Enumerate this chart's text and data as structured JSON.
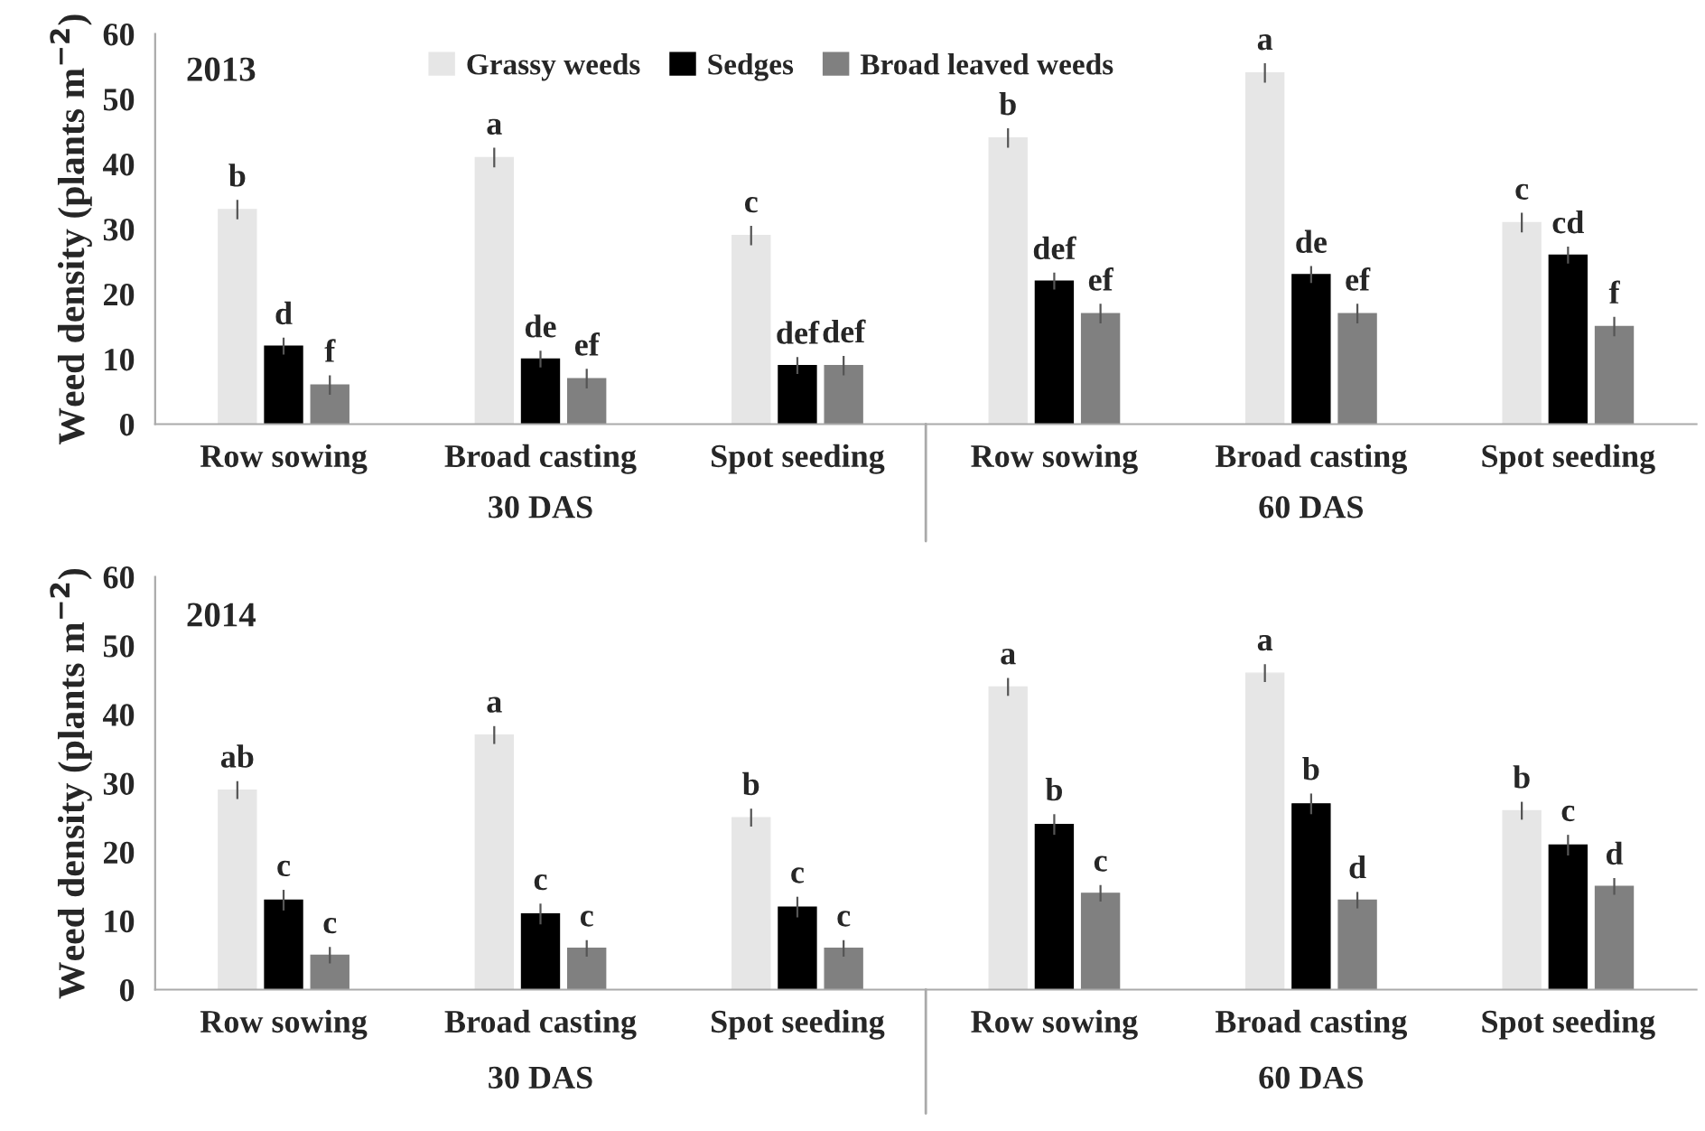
{
  "chart_data": [
    {
      "type": "bar",
      "title": "2013",
      "ylabel": "Weed density (plants m$^{−2}$)",
      "categories": [
        "Row sowing",
        "Broad casting",
        "Spot seeding",
        "Row sowing",
        "Broad casting",
        "Spot seeding"
      ],
      "series": [
        {
          "name": "Grassy weeds",
          "color": "#e6e6e6",
          "values": [
            33,
            41,
            29,
            44,
            54,
            31
          ],
          "errors": [
            1.5,
            1.5,
            1.5,
            1.5,
            1.5,
            1.5
          ],
          "value_labels": [
            "b",
            "a",
            "c",
            "b",
            "a",
            "c"
          ]
        },
        {
          "name": "Sedges",
          "color": "#000000",
          "values": [
            12,
            10,
            9,
            22,
            23,
            26
          ],
          "errors": [
            1.3,
            1.3,
            1.3,
            1.3,
            1.3,
            1.3
          ],
          "value_labels": [
            "d",
            "de",
            "def",
            "def",
            "de",
            "cd"
          ]
        },
        {
          "name": "Broad leaved weeds",
          "color": "#808080",
          "values": [
            6,
            7,
            9,
            17,
            17,
            15
          ],
          "errors": [
            1.5,
            1.5,
            1.5,
            1.5,
            1.5,
            1.5
          ],
          "value_labels": [
            "f",
            "ef",
            "def",
            "ef",
            "ef",
            "f"
          ]
        }
      ],
      "annotations": [
        "30 DAS",
        "60 DAS"
      ],
      "ylim": [
        0,
        60
      ],
      "yticks": [
        0,
        10,
        20,
        30,
        40,
        50,
        60
      ],
      "grid": false,
      "legend": "top"
    },
    {
      "type": "bar",
      "title": "2014",
      "ylabel": "Weed density (plants m$^{−2}$)",
      "categories": [
        "Row sowing",
        "Broad casting",
        "Spot seeding",
        "Row sowing",
        "Broad casting",
        "Spot seeding"
      ],
      "series": [
        {
          "color": "#e6e6e6",
          "values": [
            29,
            37,
            25,
            44,
            46,
            26
          ],
          "errors": [
            1.3,
            1.3,
            1.3,
            1.3,
            1.3,
            1.3
          ],
          "value_labels": [
            "ab",
            "a",
            "b",
            "a",
            "a",
            "b"
          ]
        },
        {
          "color": "#000000",
          "values": [
            13,
            11,
            12,
            24,
            27,
            21
          ],
          "errors": [
            1.5,
            1.5,
            1.5,
            1.5,
            1.5,
            1.5
          ],
          "value_labels": [
            "c",
            "c",
            "c",
            "b",
            "b",
            "c"
          ]
        },
        {
          "color": "#808080",
          "values": [
            5,
            6,
            6,
            14,
            13,
            15
          ],
          "errors": [
            1.2,
            1.2,
            1.2,
            1.2,
            1.2,
            1.2
          ],
          "value_labels": [
            "c",
            "c",
            "c",
            "c",
            "d",
            "d"
          ]
        }
      ],
      "annotations": [
        "30 DAS",
        "60 DAS"
      ],
      "ylim": [
        0,
        60
      ],
      "yticks": [
        0,
        10,
        20,
        30,
        40,
        50,
        60
      ],
      "grid": false,
      "legend": false
    }
  ]
}
